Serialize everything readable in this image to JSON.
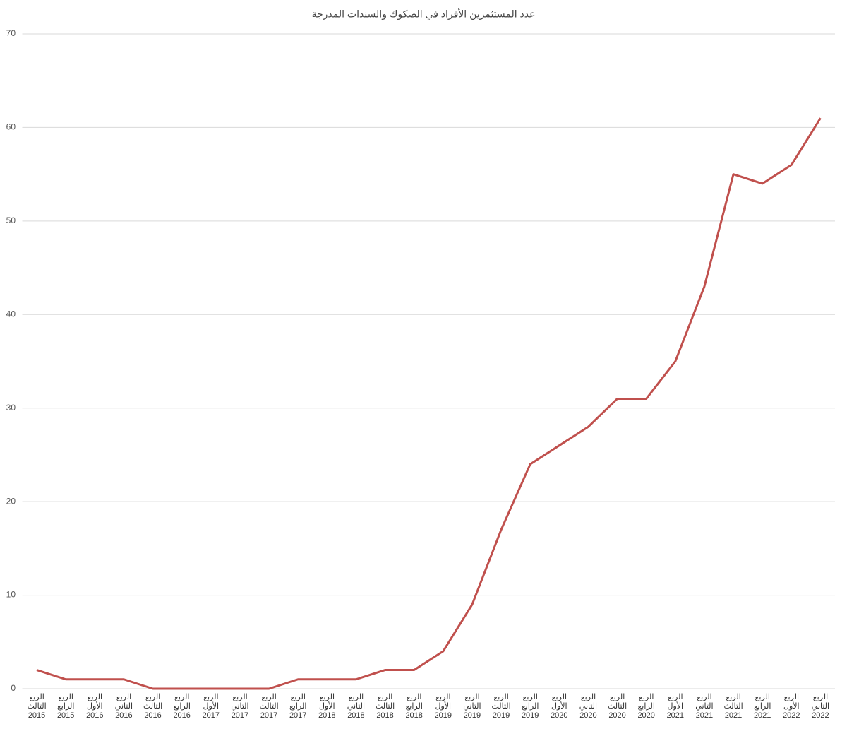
{
  "chart_data": {
    "type": "line",
    "title": "عدد المستثمرين الأفراد في الصكوك والسندات المدرجة",
    "categories": [
      "الربع الثالث 2015",
      "الربع الرابع 2015",
      "الربع الأول 2016",
      "الربع الثاني 2016",
      "الربع الثالث 2016",
      "الربع الرابع 2016",
      "الربع الأول 2017",
      "الربع الثاني 2017",
      "الربع الثالث 2017",
      "الربع الرابع 2017",
      "الربع الأول 2018",
      "الربع الثاني 2018",
      "الربع الثالث 2018",
      "الربع الرابع 2018",
      "الربع الأول 2019",
      "الربع الثاني 2019",
      "الربع الثالث 2019",
      "الربع الرابع 2019",
      "الربع الأول 2020",
      "الربع الثاني 2020",
      "الربع الثالث 2020",
      "الربع الرابع 2020",
      "الربع الأول 2021",
      "الربع الثاني 2021",
      "الربع الثالث 2021",
      "الربع الرابع 2021",
      "الربع الأول 2022",
      "الربع الثاني 2022"
    ],
    "values": [
      2,
      1,
      1,
      1,
      0,
      0,
      0,
      0,
      0,
      1,
      1,
      1,
      2,
      2,
      4,
      9,
      17,
      24,
      26,
      28,
      31,
      31,
      35,
      43,
      55,
      54,
      56,
      61
    ],
    "color": "#c0504d",
    "ylim": [
      0,
      70
    ],
    "yticks": [
      0,
      10,
      20,
      30,
      40,
      50,
      60,
      70
    ],
    "grid": true
  }
}
